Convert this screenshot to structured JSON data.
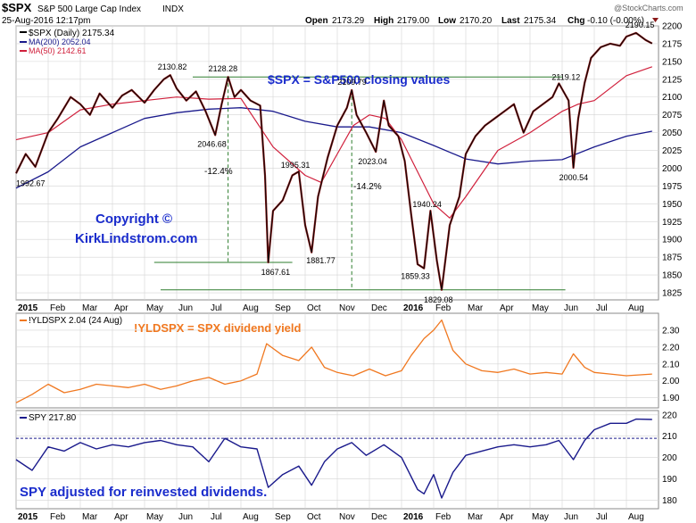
{
  "header": {
    "symbol": "$SPX",
    "name": "S&P 500 Large Cap Index",
    "exchange": "INDX",
    "date": "25-Aug-2016 12:17pm",
    "open_label": "Open",
    "open": "2173.29",
    "high_label": "High",
    "high": "2179.00",
    "low_label": "Low",
    "low": "2170.20",
    "last_label": "Last",
    "last": "2175.34",
    "chg_label": "Chg",
    "chg": "-0.10 (-0.00%)",
    "watermark": "@StockCharts.com"
  },
  "colors": {
    "price": "#000000",
    "down_bar": "#8b1a1a",
    "ma200": "#1a1a8c",
    "ma50": "#d0203c",
    "yield": "#f07820",
    "spy": "#1a1a8c",
    "annotation_blue": "#1a2ccc",
    "guide_green": "#2e7d2e",
    "grid": "#d4d4d4"
  },
  "x_axis": {
    "month_labels": [
      "2015",
      "Feb",
      "Mar",
      "Apr",
      "May",
      "Jun",
      "Jul",
      "Aug",
      "Sep",
      "Oct",
      "Nov",
      "Dec",
      "2016",
      "Feb",
      "Mar",
      "Apr",
      "May",
      "Jun",
      "Jul",
      "Aug"
    ]
  },
  "chart_data": [
    {
      "type": "line",
      "panel": "price",
      "legend": [
        {
          "label": "$SPX (Daily) 2175.34"
        },
        {
          "label": "MA(200) 2052.04"
        },
        {
          "label": "MA(50) 2142.61"
        }
      ],
      "ylim": [
        1815,
        2200
      ],
      "y_ticks": [
        1825,
        1850,
        1875,
        1900,
        1925,
        1950,
        1975,
        2000,
        2025,
        2050,
        2075,
        2100,
        2125,
        2150,
        2175,
        2200
      ],
      "series": [
        {
          "name": "$SPX (Daily)",
          "points": [
            [
              0,
              1992.67
            ],
            [
              0.3,
              2020
            ],
            [
              0.6,
              2002
            ],
            [
              1.0,
              2050
            ],
            [
              1.3,
              2070
            ],
            [
              1.7,
              2100
            ],
            [
              2.0,
              2090
            ],
            [
              2.3,
              2075
            ],
            [
              2.6,
              2105
            ],
            [
              3.0,
              2085
            ],
            [
              3.3,
              2102
            ],
            [
              3.6,
              2110
            ],
            [
              4.0,
              2092
            ],
            [
              4.3,
              2110
            ],
            [
              4.6,
              2125
            ],
            [
              4.8,
              2130.82
            ],
            [
              5.0,
              2112
            ],
            [
              5.3,
              2095
            ],
            [
              5.6,
              2108
            ],
            [
              5.9,
              2080
            ],
            [
              6.2,
              2046.68
            ],
            [
              6.4,
              2090
            ],
            [
              6.6,
              2128.28
            ],
            [
              6.8,
              2100
            ],
            [
              7.0,
              2110
            ],
            [
              7.3,
              2095
            ],
            [
              7.6,
              2088
            ],
            [
              7.75,
              1990
            ],
            [
              7.85,
              1867.61
            ],
            [
              8.0,
              1940
            ],
            [
              8.3,
              1955
            ],
            [
              8.6,
              1990
            ],
            [
              8.8,
              1995.31
            ],
            [
              9.0,
              1920
            ],
            [
              9.2,
              1881.77
            ],
            [
              9.4,
              1960
            ],
            [
              9.7,
              2015
            ],
            [
              10.0,
              2060
            ],
            [
              10.3,
              2085
            ],
            [
              10.45,
              2109.79
            ],
            [
              10.6,
              2075
            ],
            [
              10.9,
              2050
            ],
            [
              11.2,
              2023.04
            ],
            [
              11.45,
              2095
            ],
            [
              11.6,
              2060
            ],
            [
              11.9,
              2045
            ],
            [
              12.1,
              2010
            ],
            [
              12.3,
              1935
            ],
            [
              12.5,
              1865
            ],
            [
              12.7,
              1859.33
            ],
            [
              12.9,
              1940.24
            ],
            [
              13.1,
              1870
            ],
            [
              13.25,
              1829.08
            ],
            [
              13.5,
              1920
            ],
            [
              13.8,
              1960
            ],
            [
              14.0,
              2020
            ],
            [
              14.3,
              2045
            ],
            [
              14.6,
              2060
            ],
            [
              14.9,
              2070
            ],
            [
              15.2,
              2080
            ],
            [
              15.5,
              2090
            ],
            [
              15.8,
              2050
            ],
            [
              16.1,
              2080
            ],
            [
              16.4,
              2090
            ],
            [
              16.7,
              2100
            ],
            [
              16.9,
              2119.12
            ],
            [
              17.2,
              2095
            ],
            [
              17.35,
              2000.54
            ],
            [
              17.5,
              2070
            ],
            [
              17.7,
              2120
            ],
            [
              17.9,
              2155
            ],
            [
              18.2,
              2170
            ],
            [
              18.5,
              2175
            ],
            [
              18.8,
              2172
            ],
            [
              19.0,
              2185
            ],
            [
              19.3,
              2190.15
            ],
            [
              19.6,
              2180
            ],
            [
              19.8,
              2175.34
            ]
          ]
        },
        {
          "name": "MA(200)",
          "points": [
            [
              0,
              1972
            ],
            [
              1,
              1995
            ],
            [
              2,
              2030
            ],
            [
              3,
              2050
            ],
            [
              4,
              2070
            ],
            [
              5,
              2078
            ],
            [
              6,
              2083
            ],
            [
              7,
              2085
            ],
            [
              8,
              2080
            ],
            [
              9,
              2066
            ],
            [
              10,
              2058
            ],
            [
              11,
              2058
            ],
            [
              12,
              2050
            ],
            [
              13,
              2032
            ],
            [
              14,
              2013
            ],
            [
              15,
              2006
            ],
            [
              16,
              2010
            ],
            [
              17,
              2012
            ],
            [
              18,
              2030
            ],
            [
              19,
              2045
            ],
            [
              19.8,
              2052.04
            ]
          ]
        },
        {
          "name": "MA(50)",
          "points": [
            [
              0,
              2040
            ],
            [
              1,
              2050
            ],
            [
              2,
              2082
            ],
            [
              3,
              2090
            ],
            [
              4,
              2095
            ],
            [
              5,
              2100
            ],
            [
              6,
              2097
            ],
            [
              7,
              2098
            ],
            [
              8,
              2030
            ],
            [
              9,
              1990
            ],
            [
              9.5,
              1980
            ],
            [
              10,
              2020
            ],
            [
              10.5,
              2060
            ],
            [
              11,
              2075
            ],
            [
              11.5,
              2070
            ],
            [
              12,
              2040
            ],
            [
              13,
              1950
            ],
            [
              13.5,
              1930
            ],
            [
              14,
              1960
            ],
            [
              15,
              2025
            ],
            [
              16,
              2050
            ],
            [
              17,
              2080
            ],
            [
              17.5,
              2090
            ],
            [
              18,
              2095
            ],
            [
              19,
              2130
            ],
            [
              19.8,
              2142.61
            ]
          ]
        }
      ],
      "annotations": [
        {
          "text": "$SPX = S&P500 closing values"
        },
        {
          "text": "2130.82",
          "x": 4.8,
          "y": 2130.82
        },
        {
          "text": "2128.28",
          "x": 6.6,
          "y": 2128.28
        },
        {
          "text": "2109.79",
          "x": 10.45,
          "y": 2109.79
        },
        {
          "text": "2119.12",
          "x": 16.9,
          "y": 2119.12
        },
        {
          "text": "2190.15",
          "x": 19.3,
          "y": 2190.15
        },
        {
          "text": "2046.68",
          "x": 6.2,
          "y": 2046.68
        },
        {
          "text": "-12.4%"
        },
        {
          "text": "1995.31",
          "x": 8.8,
          "y": 1995.31
        },
        {
          "text": "2023.04",
          "x": 11.2,
          "y": 2023.04
        },
        {
          "text": "-14.2%"
        },
        {
          "text": "1992.67",
          "x": 0,
          "y": 1992.67
        },
        {
          "text": "2000.54",
          "x": 17.35,
          "y": 2000.54
        },
        {
          "text": "1940.24",
          "x": 12.9,
          "y": 1940.24
        },
        {
          "text": "1867.61",
          "x": 7.85,
          "y": 1867.61
        },
        {
          "text": "1881.77",
          "x": 9.2,
          "y": 1881.77
        },
        {
          "text": "1859.33",
          "x": 12.7,
          "y": 1859.33
        },
        {
          "text": "1829.08",
          "x": 13.25,
          "y": 1829.08
        },
        {
          "text": "Copyright ©"
        },
        {
          "text": "KirkLindstrom.com"
        }
      ],
      "guides": {
        "levels": [
          2128.28,
          1867.61,
          1829.08
        ],
        "verticals": [
          6.6,
          10.45
        ]
      }
    },
    {
      "type": "line",
      "panel": "yield",
      "legend": [
        {
          "label": "!YLDSPX 2.04 (24 Aug)"
        }
      ],
      "annotation": "!YLDSPX = SPX dividend yield",
      "ylim": [
        1.84,
        2.4
      ],
      "y_ticks": [
        1.9,
        2.0,
        2.1,
        2.2,
        2.3
      ],
      "series": [
        {
          "name": "!YLDSPX",
          "points": [
            [
              0,
              1.87
            ],
            [
              0.5,
              1.92
            ],
            [
              1,
              1.98
            ],
            [
              1.5,
              1.93
            ],
            [
              2,
              1.95
            ],
            [
              2.5,
              1.98
            ],
            [
              3,
              1.97
            ],
            [
              3.5,
              1.96
            ],
            [
              4,
              1.98
            ],
            [
              4.5,
              1.95
            ],
            [
              5,
              1.97
            ],
            [
              5.5,
              2.0
            ],
            [
              6,
              2.02
            ],
            [
              6.5,
              1.98
            ],
            [
              7,
              2.0
            ],
            [
              7.5,
              2.04
            ],
            [
              7.8,
              2.22
            ],
            [
              8.3,
              2.15
            ],
            [
              8.8,
              2.12
            ],
            [
              9.2,
              2.2
            ],
            [
              9.6,
              2.08
            ],
            [
              10,
              2.05
            ],
            [
              10.5,
              2.03
            ],
            [
              11,
              2.07
            ],
            [
              11.5,
              2.03
            ],
            [
              12,
              2.06
            ],
            [
              12.3,
              2.15
            ],
            [
              12.7,
              2.25
            ],
            [
              13,
              2.3
            ],
            [
              13.25,
              2.36
            ],
            [
              13.6,
              2.18
            ],
            [
              14,
              2.1
            ],
            [
              14.5,
              2.06
            ],
            [
              15,
              2.05
            ],
            [
              15.5,
              2.07
            ],
            [
              16,
              2.04
            ],
            [
              16.5,
              2.05
            ],
            [
              17,
              2.04
            ],
            [
              17.35,
              2.16
            ],
            [
              17.7,
              2.08
            ],
            [
              18,
              2.05
            ],
            [
              18.5,
              2.04
            ],
            [
              19,
              2.03
            ],
            [
              19.8,
              2.04
            ]
          ]
        }
      ]
    },
    {
      "type": "line",
      "panel": "spy",
      "legend": [
        {
          "label": "SPY 217.80"
        }
      ],
      "annotation": "SPY adjusted for reinvested dividends.",
      "ylim": [
        176,
        222
      ],
      "y_ticks": [
        180,
        190,
        200,
        210,
        220
      ],
      "reference_level": 209,
      "series": [
        {
          "name": "SPY",
          "points": [
            [
              0,
              199
            ],
            [
              0.5,
              194
            ],
            [
              1,
              205
            ],
            [
              1.5,
              203
            ],
            [
              2,
              207
            ],
            [
              2.5,
              204
            ],
            [
              3,
              206
            ],
            [
              3.5,
              205
            ],
            [
              4,
              207
            ],
            [
              4.5,
              208
            ],
            [
              5,
              206
            ],
            [
              5.5,
              205
            ],
            [
              6,
              198
            ],
            [
              6.5,
              209
            ],
            [
              7,
              205
            ],
            [
              7.5,
              204
            ],
            [
              7.85,
              186
            ],
            [
              8.3,
              192
            ],
            [
              8.8,
              196
            ],
            [
              9.2,
              187
            ],
            [
              9.6,
              198
            ],
            [
              10,
              204
            ],
            [
              10.45,
              207
            ],
            [
              10.9,
              201
            ],
            [
              11.45,
              206
            ],
            [
              12,
              200
            ],
            [
              12.5,
              185
            ],
            [
              12.7,
              183
            ],
            [
              13,
              192
            ],
            [
              13.25,
              181
            ],
            [
              13.6,
              193
            ],
            [
              14,
              201
            ],
            [
              14.5,
              203
            ],
            [
              15,
              205
            ],
            [
              15.5,
              206
            ],
            [
              16,
              205
            ],
            [
              16.5,
              206
            ],
            [
              16.9,
              208
            ],
            [
              17.35,
              199
            ],
            [
              17.7,
              208
            ],
            [
              18,
              213
            ],
            [
              18.5,
              216
            ],
            [
              19,
              216
            ],
            [
              19.3,
              218
            ],
            [
              19.8,
              217.8
            ]
          ]
        }
      ]
    }
  ]
}
